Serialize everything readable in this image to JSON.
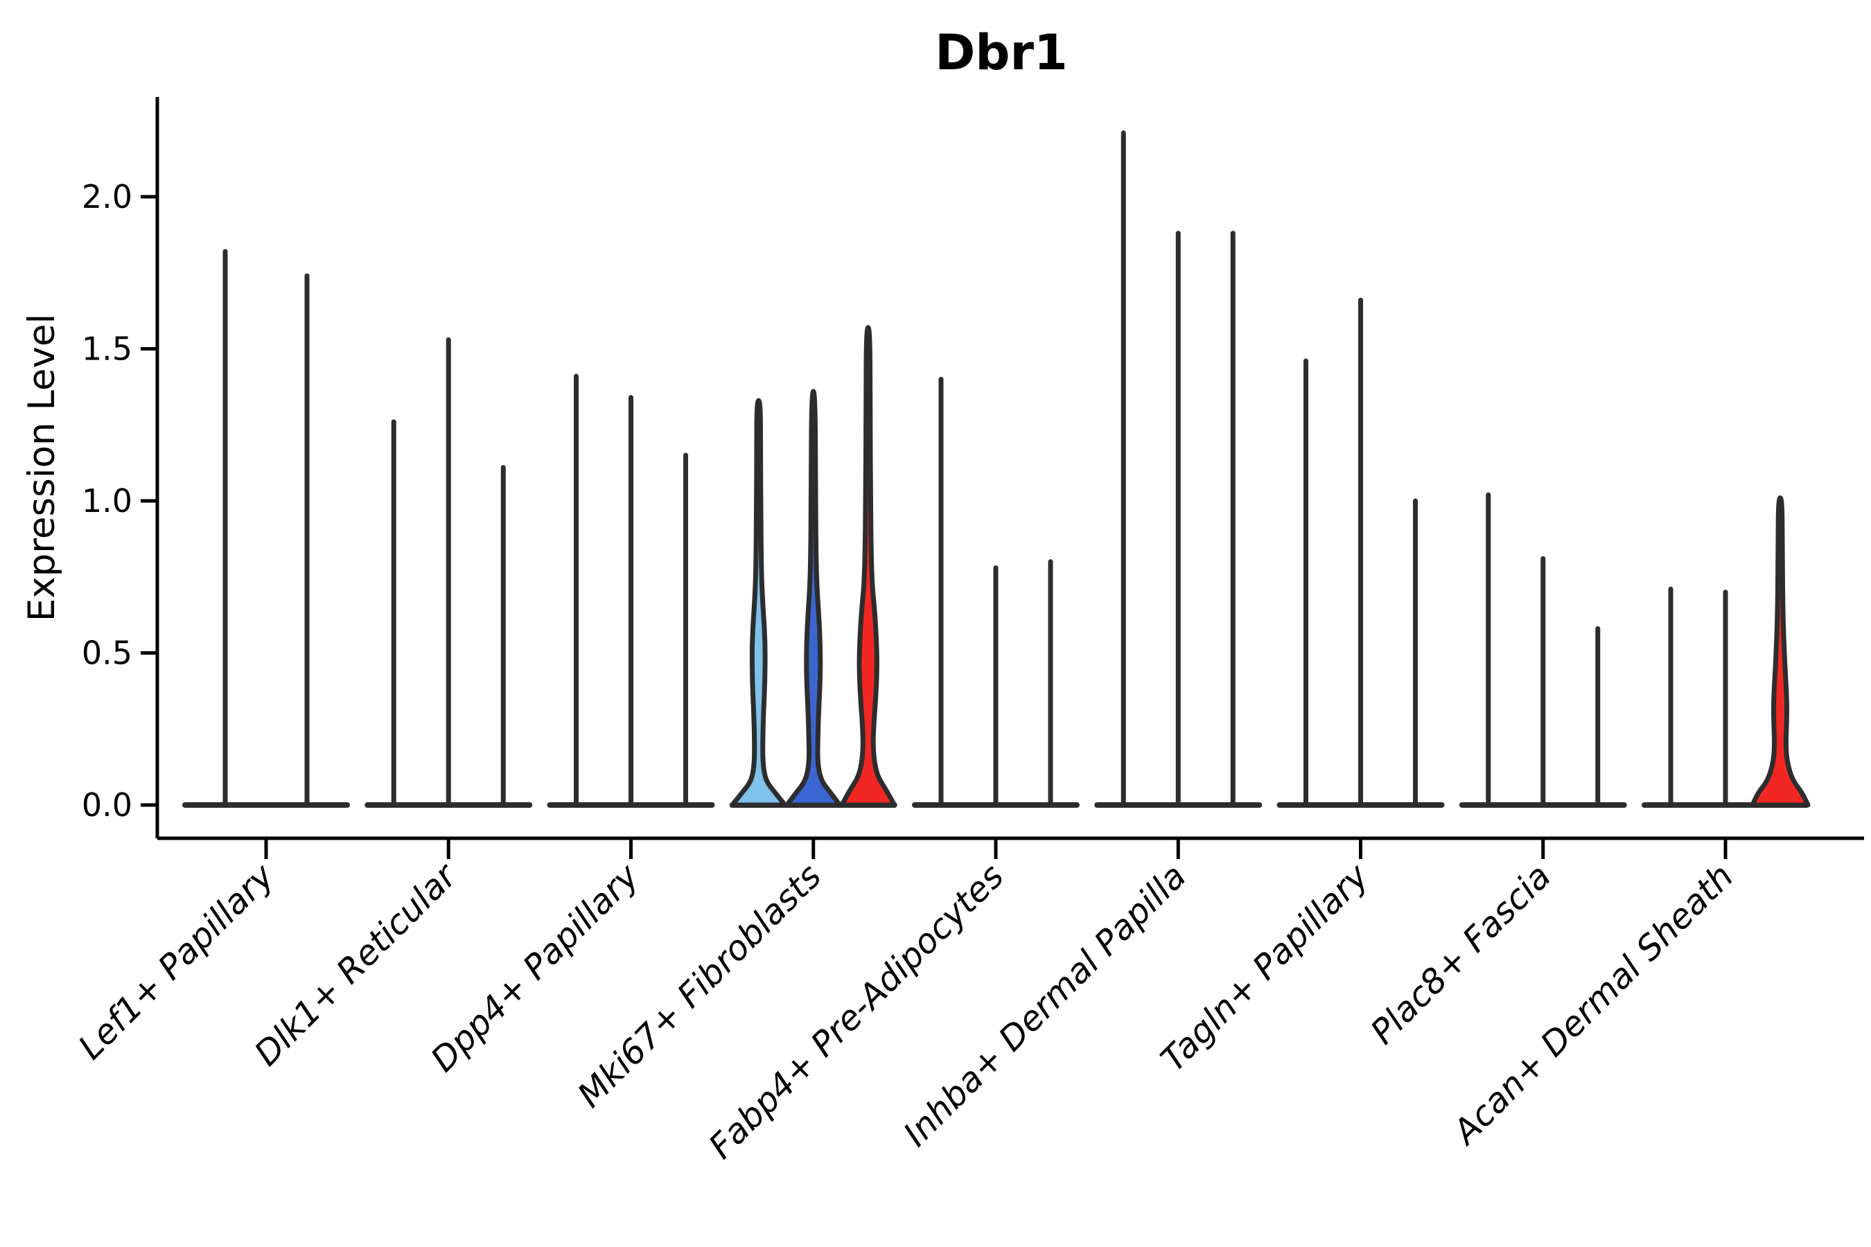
{
  "title": "Dbr1",
  "y_axis": {
    "label": "Expression Level",
    "tick_labels": [
      "0.0",
      "0.5",
      "1.0",
      "1.5",
      "2.0"
    ]
  },
  "chart_data": {
    "type": "violin",
    "title": "Dbr1",
    "xlabel": "",
    "ylabel": "Expression Level",
    "ylim": [
      -0.11,
      2.33
    ],
    "yticks": [
      0.0,
      0.5,
      1.0,
      1.5,
      2.0
    ],
    "grid": "off",
    "legend": "none",
    "colors": {
      "outline": "#2d2d2d",
      "light_blue": "#7fc2ea",
      "blue": "#3b66d1",
      "red": "#f22723",
      "axis": "#000000",
      "background": "#ffffff"
    },
    "categories": [
      "Lef1+ Papillary",
      "Dlk1+ Reticular",
      "Dpp4+ Papillary",
      "Mki67+ Fibroblasts",
      "Fabp4+ Pre-Adipocytes",
      "Inhba+ Dermal Papilla",
      "Tagln+ Papillary",
      "Plac8+ Fascia",
      "Acan+ Dermal Sheath"
    ],
    "groups": [
      {
        "category": "Lef1+ Papillary",
        "violins": [
          {
            "max": 1.82,
            "fill": null,
            "profile": null
          },
          {
            "max": 1.74,
            "fill": null,
            "profile": null
          }
        ]
      },
      {
        "category": "Dlk1+ Reticular",
        "violins": [
          {
            "max": 1.26,
            "fill": null,
            "profile": null
          },
          {
            "max": 1.53,
            "fill": null,
            "profile": null
          },
          {
            "max": 1.11,
            "fill": null,
            "profile": null
          }
        ]
      },
      {
        "category": "Dpp4+ Papillary",
        "violins": [
          {
            "max": 1.41,
            "fill": null,
            "profile": null
          },
          {
            "max": 1.34,
            "fill": null,
            "profile": null
          },
          {
            "max": 1.15,
            "fill": null,
            "profile": null
          }
        ]
      },
      {
        "category": "Mki67+ Fibroblasts",
        "violins": [
          {
            "max": 1.33,
            "fill": "#7fc2ea",
            "profile": [
              [
                0,
                38
              ],
              [
                0.04,
                24
              ],
              [
                0.08,
                10
              ],
              [
                0.14,
                6
              ],
              [
                0.22,
                6
              ],
              [
                0.3,
                7
              ],
              [
                0.4,
                9
              ],
              [
                0.5,
                9.5
              ],
              [
                0.58,
                8.5
              ],
              [
                0.66,
                6
              ],
              [
                0.76,
                4
              ],
              [
                0.95,
                3.2
              ],
              [
                1.15,
                2.8
              ],
              [
                1.33,
                2.6
              ]
            ]
          },
          {
            "max": 1.36,
            "fill": "#3b66d1",
            "profile": [
              [
                0,
                38
              ],
              [
                0.04,
                25
              ],
              [
                0.08,
                11
              ],
              [
                0.14,
                6
              ],
              [
                0.22,
                6.5
              ],
              [
                0.3,
                7.5
              ],
              [
                0.42,
                10
              ],
              [
                0.52,
                10
              ],
              [
                0.62,
                8
              ],
              [
                0.7,
                5.5
              ],
              [
                0.8,
                4
              ],
              [
                1.0,
                3.2
              ],
              [
                1.36,
                2.6
              ]
            ]
          },
          {
            "max": 1.57,
            "fill": "#f22723",
            "profile": [
              [
                0,
                38
              ],
              [
                0.05,
                26
              ],
              [
                0.1,
                12
              ],
              [
                0.18,
                7
              ],
              [
                0.26,
                8
              ],
              [
                0.35,
                11
              ],
              [
                0.45,
                13
              ],
              [
                0.55,
                12
              ],
              [
                0.65,
                9
              ],
              [
                0.72,
                6
              ],
              [
                0.82,
                4.5
              ],
              [
                1.0,
                3.5
              ],
              [
                1.3,
                3
              ],
              [
                1.57,
                2.6
              ]
            ]
          }
        ]
      },
      {
        "category": "Fabp4+ Pre-Adipocytes",
        "violins": [
          {
            "max": 1.4,
            "fill": null,
            "profile": null
          },
          {
            "max": 0.78,
            "fill": null,
            "profile": null
          },
          {
            "max": 0.8,
            "fill": null,
            "profile": null
          }
        ]
      },
      {
        "category": "Inhba+ Dermal Papilla",
        "violins": [
          {
            "max": 2.21,
            "fill": null,
            "profile": null
          },
          {
            "max": 1.88,
            "fill": null,
            "profile": null
          },
          {
            "max": 1.88,
            "fill": null,
            "profile": null
          }
        ]
      },
      {
        "category": "Tagln+ Papillary",
        "violins": [
          {
            "max": 1.46,
            "fill": null,
            "profile": null
          },
          {
            "max": 1.66,
            "fill": null,
            "profile": null
          },
          {
            "max": 1.0,
            "fill": null,
            "profile": null
          }
        ]
      },
      {
        "category": "Plac8+ Fascia",
        "violins": [
          {
            "max": 1.02,
            "fill": null,
            "profile": null
          },
          {
            "max": 0.81,
            "fill": null,
            "profile": null
          },
          {
            "max": 0.58,
            "fill": null,
            "profile": null
          }
        ]
      },
      {
        "category": "Acan+ Dermal Sheath",
        "violins": [
          {
            "max": 0.71,
            "fill": null,
            "profile": null
          },
          {
            "max": 0.7,
            "fill": null,
            "profile": null
          },
          {
            "max": 1.01,
            "fill": "#f22723",
            "profile": [
              [
                0,
                40
              ],
              [
                0.04,
                32
              ],
              [
                0.08,
                18
              ],
              [
                0.14,
                10
              ],
              [
                0.2,
                8
              ],
              [
                0.28,
                9.5
              ],
              [
                0.35,
                9.5
              ],
              [
                0.45,
                7
              ],
              [
                0.55,
                5
              ],
              [
                0.65,
                3.8
              ],
              [
                0.85,
                3
              ],
              [
                1.01,
                2.6
              ]
            ]
          }
        ]
      }
    ]
  }
}
